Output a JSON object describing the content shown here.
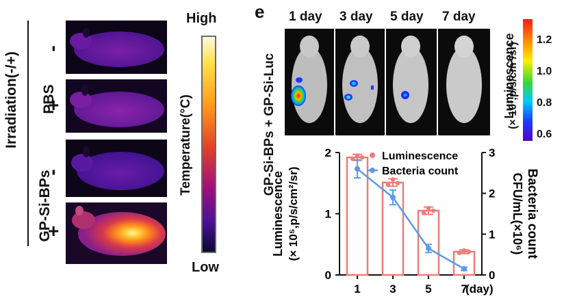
{
  "left_panel": {
    "group_label": "Irradiation(-/+)",
    "pbs_label": "PBS",
    "gpsi_label": "GP-Si-BPs",
    "signs": [
      "-",
      "+",
      "-",
      "+"
    ],
    "colorbar": {
      "high": "High",
      "low": "Low",
      "axis_label": "Temperature(°C)",
      "gradient_colors": [
        "#fffbe0",
        "#ffe14a",
        "#ff9a1a",
        "#e0402a",
        "#a0107a",
        "#4a1196",
        "#0a0930"
      ]
    }
  },
  "right_panel": {
    "panel_letter": "e",
    "side_label": "GP-Si-BPs + GP-Si-Luc",
    "day_titles": [
      "1 day",
      "3 day",
      "5 day",
      "7 day"
    ],
    "colorbar": {
      "ticks": [
        "1.2",
        "1.0",
        "0.8",
        "0.6"
      ],
      "label_line1": "Luminescence",
      "label_line2": "(× 10³,p/s/cm²/sr)",
      "gradient_colors": [
        "#ff1a1a",
        "#ff8c00",
        "#ffee00",
        "#36d836",
        "#00c8ff",
        "#1a3cff",
        "#5a00c8"
      ]
    }
  },
  "chart_data": {
    "type": "bar",
    "categories": [
      "1",
      "3",
      "5",
      "7"
    ],
    "x_unit": "(day)",
    "series": [
      {
        "name": "Luminescence",
        "kind": "bar",
        "axis": "left",
        "values": [
          1.92,
          1.51,
          1.05,
          0.38
        ],
        "errors": [
          0.05,
          0.06,
          0.06,
          0.03
        ],
        "points": [
          [
            1.9,
            1.95,
            1.92
          ],
          [
            1.47,
            1.56,
            1.5
          ],
          [
            1.01,
            1.09,
            1.05
          ],
          [
            0.36,
            0.4,
            0.38
          ]
        ],
        "color": "#f07b78"
      },
      {
        "name": "Bacteria count",
        "kind": "line",
        "axis": "right",
        "values": [
          2.6,
          1.9,
          0.65,
          0.15
        ],
        "errors": [
          0.22,
          0.18,
          0.1,
          0.04
        ],
        "color": "#5a9be6"
      }
    ],
    "ylabel_left_line1": "Luminescence",
    "ylabel_left_line2": "(× 10⁵,p/s/cm²/sr)",
    "ylabel_right_line1": "Bacteria count",
    "ylabel_right_line2": "CFU/mL(×10⁶)",
    "ylim_left": [
      0,
      2
    ],
    "ylim_right": [
      0,
      3
    ],
    "yticks_left": [
      "0",
      "1",
      "2"
    ],
    "yticks_right": [
      "0",
      "1",
      "2",
      "3"
    ],
    "legend_position": "top-right"
  }
}
